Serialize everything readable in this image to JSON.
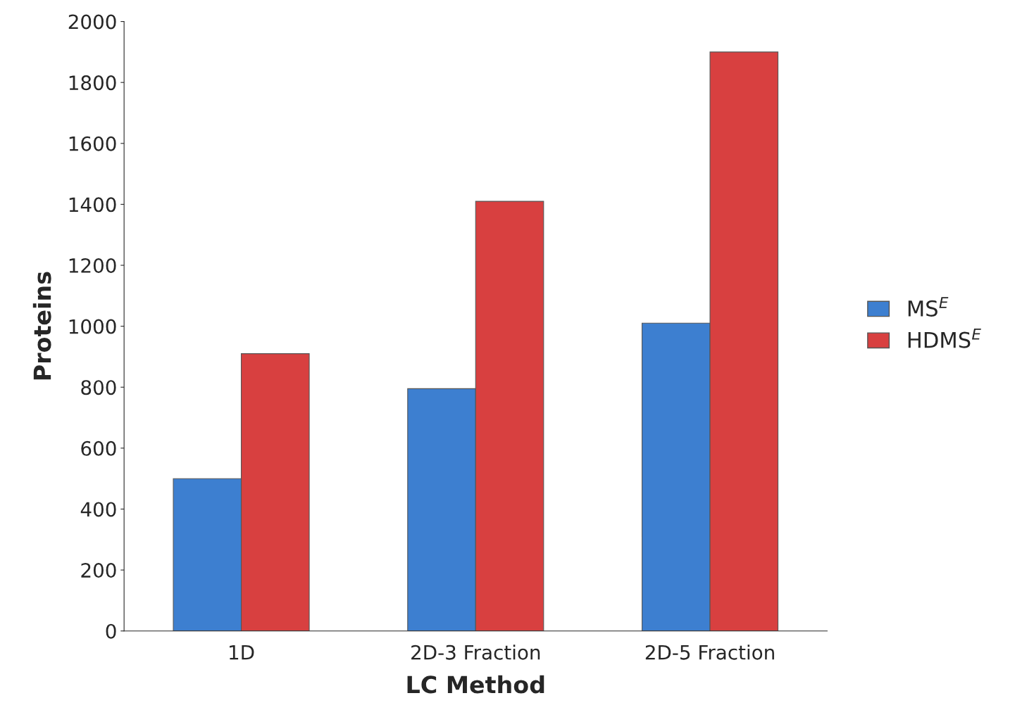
{
  "chart_data": {
    "type": "bar",
    "xlabel": "LC Method",
    "ylabel": "Proteins",
    "categories": [
      "1D",
      "2D-3 Fraction",
      "2D-5 Fraction"
    ],
    "series": [
      {
        "name": "MS$^{E}$",
        "color": "#3d7fd0",
        "values": [
          500,
          795,
          1010
        ]
      },
      {
        "name": "HDMS$^{E}$",
        "color": "#d84040",
        "values": [
          910,
          1410,
          1900
        ]
      }
    ],
    "ylim": [
      0,
      2000
    ],
    "yticks": [
      0,
      200,
      400,
      600,
      800,
      1000,
      1200,
      1400,
      1600,
      1800,
      2000
    ],
    "legend": "right"
  }
}
